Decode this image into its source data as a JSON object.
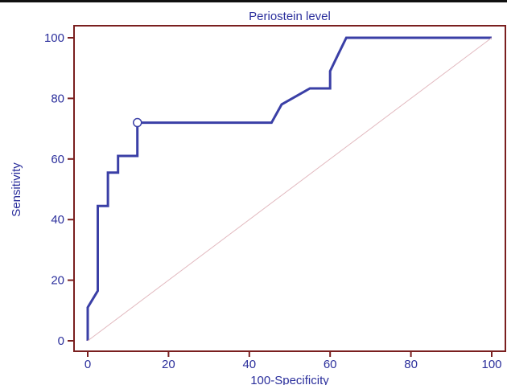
{
  "chart_data": {
    "type": "line",
    "title": "Periostein level",
    "xlabel": "100-Specificity",
    "ylabel": "Sensitivity",
    "xlim": [
      0,
      100
    ],
    "ylim": [
      0,
      100
    ],
    "x_ticks": [
      0,
      20,
      40,
      60,
      80,
      100
    ],
    "y_ticks": [
      0,
      20,
      40,
      60,
      80,
      100
    ],
    "grid": false,
    "series": [
      {
        "style": "roc-step",
        "color": "#3a3fa6",
        "x": [
          0,
          0,
          0,
          2.5,
          2.5,
          5,
          5,
          7.5,
          7.5,
          12.3,
          12.3,
          45.5,
          48,
          55,
          60,
          60,
          62,
          64,
          100
        ],
        "y": [
          0,
          5,
          11,
          16.5,
          44.5,
          44.5,
          55.5,
          55.5,
          61,
          61,
          72,
          72,
          78,
          83.3,
          83.3,
          89,
          94.5,
          100,
          100
        ]
      },
      {
        "style": "diagonal-reference",
        "color": "#e2b9bf",
        "x": [
          0,
          100
        ],
        "y": [
          0,
          100
        ]
      }
    ],
    "marker": {
      "x": 12.3,
      "y": 72,
      "shape": "open-circle"
    },
    "colors": {
      "frame": "#7a1f1f",
      "text": "#2b2f9c",
      "curve": "#3a3fa6",
      "reference": "#e2b9bf"
    }
  }
}
